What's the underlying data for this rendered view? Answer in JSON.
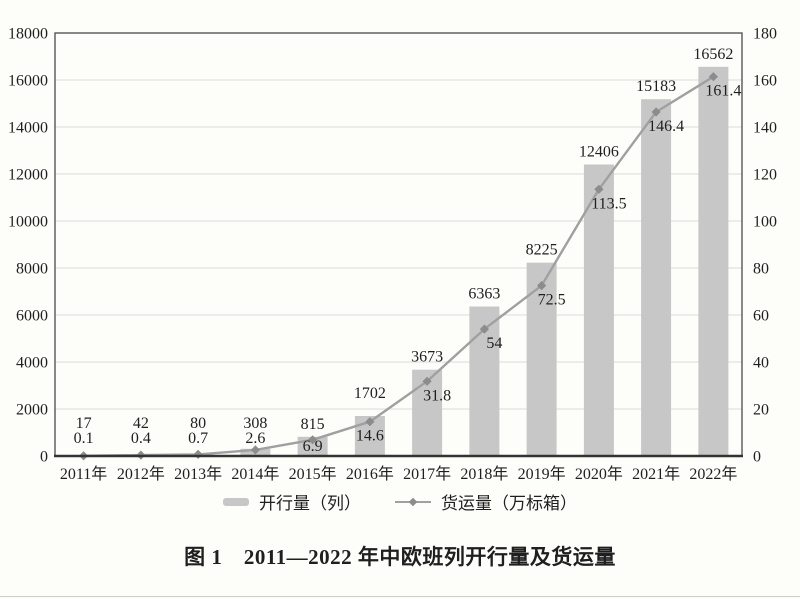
{
  "figure": {
    "caption": "图 1　2011—2022 年中欧班列开行量及货运量"
  },
  "colors": {
    "bar": "#c7c7c7",
    "line": "#a0a0a0",
    "marker": "#8c8c8c",
    "grid": "#dcdcdc",
    "frame": "#4a4a4a",
    "baseline": "#333333",
    "text": "#1f1f1f",
    "divider": "#cdcdcb",
    "background": "#fdfdfa"
  },
  "chart_data": {
    "type": "bar",
    "subtype": "bar+line combo, dual axis",
    "title": "图 1　2011—2022 年中欧班列开行量及货运量",
    "categories": [
      "2011年",
      "2012年",
      "2013年",
      "2014年",
      "2015年",
      "2016年",
      "2017年",
      "2018年",
      "2019年",
      "2020年",
      "2021年",
      "2022年"
    ],
    "series": [
      {
        "name": "开行量（列）",
        "type": "bar",
        "axis": "left",
        "values": [
          17,
          42,
          80,
          308,
          815,
          1702,
          3673,
          6363,
          8225,
          12406,
          15183,
          16562
        ]
      },
      {
        "name": "货运量（万标箱）",
        "type": "line",
        "marker": "diamond",
        "axis": "right",
        "values": [
          0.1,
          0.4,
          0.7,
          2.6,
          6.9,
          14.6,
          31.8,
          54,
          72.5,
          113.5,
          146.4,
          161.4
        ]
      }
    ],
    "left_axis": {
      "min": 0,
      "max": 18000,
      "step": 2000,
      "tick_labels": [
        "0",
        "2000",
        "4000",
        "6000",
        "8000",
        "10000",
        "12000",
        "14000",
        "16000",
        "18000"
      ]
    },
    "right_axis": {
      "min": 0,
      "max": 180,
      "step": 20,
      "tick_labels": [
        "0",
        "20",
        "40",
        "60",
        "80",
        "100",
        "120",
        "140",
        "160",
        "180"
      ]
    },
    "grid": "horizontal gridlines on",
    "legend_position": "bottom",
    "data_labels": true,
    "xlabel": "",
    "ylabel_left": "",
    "ylabel_right": ""
  }
}
